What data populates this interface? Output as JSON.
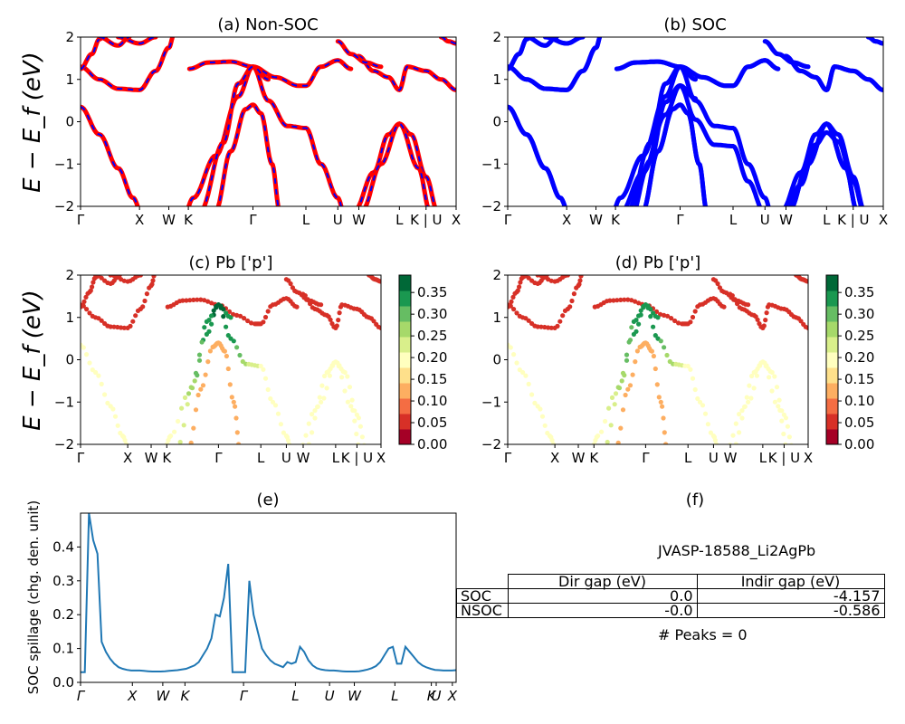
{
  "panels": {
    "a": {
      "title": "(a) Non-SOC"
    },
    "b": {
      "title": "(b) SOC"
    },
    "c": {
      "title": "(c)  Pb ['p']"
    },
    "d": {
      "title": "(d) Pb ['p']"
    },
    "e": {
      "title": "(e)"
    },
    "f": {
      "title": "(f)"
    }
  },
  "band_ylabel": "E − E_f (eV)",
  "kpath_labels": [
    "Γ",
    "X",
    "W",
    "K",
    "Γ",
    "L",
    "U",
    "W",
    "L",
    "K | U",
    "X"
  ],
  "colors": {
    "nonsoc_line": "#ff0000",
    "nonsoc_dash": "#0000ff",
    "soc_line": "#0000ff",
    "spillage": "#1f77b4"
  },
  "colorbar": {
    "ticks": [
      "0.00",
      "0.05",
      "0.10",
      "0.15",
      "0.20",
      "0.25",
      "0.30",
      "0.35"
    ],
    "colormap": "RdYlGn"
  },
  "chart_data": [
    {
      "type": "line",
      "panel": "a",
      "title": "(a) Non-SOC",
      "ylabel": "E − E_f (eV)",
      "ylim": [
        -2,
        2
      ],
      "yticks": [
        "2",
        "1",
        "0",
        "−1",
        "−2"
      ],
      "x_ticks": [
        "Γ",
        "X",
        "W",
        "K",
        "Γ",
        "L",
        "U",
        "W",
        "L",
        "K | U",
        "X"
      ],
      "bands": [
        [
          0.35,
          0.0,
          -0.7,
          -1.4,
          -2.0
        ],
        [
          1.3,
          0.95,
          0.72,
          0.9,
          1.5,
          2.0
        ]
      ]
    },
    {
      "type": "line",
      "panel": "b",
      "title": "(b) SOC",
      "ylabel": "",
      "ylim": [
        -2,
        2
      ],
      "yticks": [
        "2",
        "1",
        "0",
        "−1",
        "−2"
      ],
      "x_ticks": [
        "Γ",
        "X",
        "W",
        "K",
        "Γ",
        "L",
        "U",
        "W",
        "L",
        "K | U",
        "X"
      ]
    },
    {
      "type": "scatter",
      "panel": "c",
      "title": "(c)  Pb ['p']",
      "ylim": [
        -2,
        2
      ],
      "yticks": [
        "2",
        "1",
        "0",
        "−1",
        "−2"
      ],
      "colorbar_range": [
        0.0,
        0.39
      ],
      "x_ticks": [
        "Γ",
        "X",
        "W",
        "K",
        "Γ",
        "L",
        "U",
        "W",
        "L",
        "K | U",
        "X"
      ]
    },
    {
      "type": "scatter",
      "panel": "d",
      "title": "(d) Pb ['p']",
      "ylim": [
        -2,
        2
      ],
      "yticks": [
        "2",
        "1",
        "0",
        "−1",
        "−2"
      ],
      "colorbar_range": [
        0.0,
        0.39
      ],
      "x_ticks": [
        "Γ",
        "X",
        "W",
        "K",
        "Γ",
        "L",
        "U",
        "W",
        "L",
        "K | U",
        "X"
      ]
    },
    {
      "type": "line",
      "panel": "e",
      "title": "(e)",
      "ylabel": "SOC spillage (chg. den. unit)",
      "ylim": [
        0,
        0.5
      ],
      "yticks": [
        "0.4",
        "0.3",
        "0.2",
        "0.1",
        "0.0"
      ],
      "x_ticks": [
        "Γ",
        "X",
        "W",
        "K",
        "Γ",
        "L",
        "U",
        "W",
        "L",
        "K",
        "U",
        "X"
      ],
      "series": [
        {
          "values": [
            0.03,
            0.03,
            0.5,
            0.42,
            0.38,
            0.12,
            0.09,
            0.07,
            0.055,
            0.045,
            0.04,
            0.037,
            0.035,
            0.035,
            0.035,
            0.034,
            0.033,
            0.032,
            0.032,
            0.032,
            0.033,
            0.034,
            0.035,
            0.036,
            0.038,
            0.04,
            0.045,
            0.05,
            0.06,
            0.08,
            0.1,
            0.13,
            0.2,
            0.195,
            0.25,
            0.35,
            0.03,
            0.03,
            0.03,
            0.03,
            0.3,
            0.2,
            0.15,
            0.1,
            0.08,
            0.065,
            0.055,
            0.05,
            0.045,
            0.06,
            0.055,
            0.06,
            0.105,
            0.09,
            0.065,
            0.05,
            0.042,
            0.038,
            0.036,
            0.035,
            0.035,
            0.034,
            0.033,
            0.032,
            0.032,
            0.032,
            0.033,
            0.035,
            0.038,
            0.042,
            0.048,
            0.06,
            0.08,
            0.1,
            0.105,
            0.055,
            0.055,
            0.105,
            0.09,
            0.075,
            0.06,
            0.05,
            0.044,
            0.04,
            0.037,
            0.036,
            0.035,
            0.035,
            0.035,
            0.036
          ]
        }
      ]
    },
    {
      "type": "table",
      "panel": "f",
      "title": "(f)",
      "caption": "JVASP-18588_Li2AgPb",
      "columns": [
        "Dir gap (eV)",
        "Indir gap (eV)"
      ],
      "rows": [
        [
          "SOC",
          "0.0",
          "-4.157"
        ],
        [
          "NSOC",
          "-0.0",
          "-0.586"
        ]
      ],
      "footer": "# Peaks = 0"
    }
  ]
}
